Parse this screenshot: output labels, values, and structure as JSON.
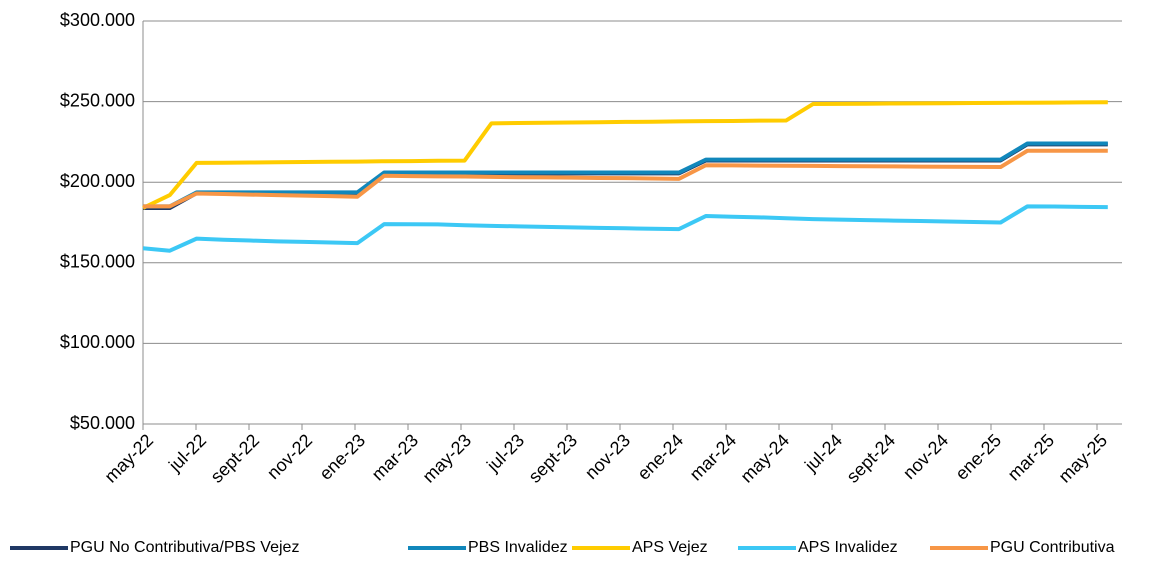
{
  "chart_data": {
    "type": "line",
    "categories": [
      "may-22",
      null,
      "jul-22",
      null,
      "sept-22",
      null,
      "nov-22",
      null,
      "ene-23",
      null,
      "mar-23",
      null,
      "may-23",
      null,
      "jul-23",
      null,
      "sept-23",
      null,
      "nov-23",
      null,
      "ene-24",
      null,
      "mar-24",
      null,
      "may-24",
      null,
      "jul-24",
      null,
      "sept-24",
      null,
      "nov-24",
      null,
      "ene-25",
      null,
      "mar-25",
      null,
      "may-25"
    ],
    "series": [
      {
        "name": "PGU No Contributiva/PBS Vejez",
        "color": "#1f3864",
        "values": [
          184000,
          184000,
          193200,
          193200,
          193200,
          193200,
          193200,
          193200,
          193200,
          205500,
          205500,
          205500,
          205500,
          205500,
          205500,
          205500,
          205500,
          205500,
          205500,
          205500,
          205500,
          213500,
          213500,
          213500,
          213500,
          213500,
          213500,
          213500,
          213500,
          213500,
          213500,
          213500,
          213500,
          223500,
          223500,
          223500,
          223500
        ]
      },
      {
        "name": "PBS Invalidez",
        "color": "#1187bb",
        "values": [
          185000,
          185000,
          193700,
          193700,
          193700,
          193700,
          193700,
          193700,
          193700,
          206000,
          206000,
          206000,
          206000,
          206000,
          206000,
          206000,
          206000,
          206000,
          206000,
          206000,
          206000,
          214000,
          214000,
          214000,
          214000,
          214000,
          214000,
          214000,
          214000,
          214000,
          214000,
          214000,
          214000,
          224000,
          224000,
          224000,
          224000
        ]
      },
      {
        "name": "APS Vejez",
        "color": "#ffcc00",
        "values": [
          184000,
          192000,
          212000,
          212100,
          212200,
          212400,
          212500,
          212700,
          212800,
          213000,
          213100,
          213300,
          213400,
          236500,
          236700,
          236900,
          237000,
          237200,
          237400,
          237500,
          237700,
          237900,
          238000,
          238200,
          238300,
          248500,
          248600,
          248700,
          248800,
          248900,
          249000,
          249100,
          249200,
          249300,
          249400,
          249500,
          249600
        ]
      },
      {
        "name": "APS Invalidez",
        "color": "#3cc8f5",
        "values": [
          159000,
          157500,
          165000,
          164300,
          163800,
          163300,
          163000,
          162600,
          162200,
          174000,
          173900,
          173800,
          173300,
          172900,
          172600,
          172300,
          172000,
          171700,
          171400,
          171100,
          170900,
          179000,
          178600,
          178200,
          177600,
          177100,
          176800,
          176500,
          176200,
          175900,
          175600,
          175300,
          175000,
          185000,
          184900,
          184700,
          184500
        ]
      },
      {
        "name": "PGU Contributiva",
        "color": "#f79646",
        "values": [
          185000,
          185000,
          193000,
          192700,
          192300,
          192000,
          191700,
          191400,
          191000,
          204000,
          203800,
          203600,
          203500,
          203300,
          203100,
          203000,
          202800,
          202600,
          202500,
          202300,
          202100,
          210500,
          210400,
          210300,
          210200,
          210100,
          210000,
          209900,
          209800,
          209700,
          209600,
          209500,
          209400,
          219500,
          219500,
          219500,
          219500
        ]
      }
    ],
    "ylim": [
      50000,
      300000
    ],
    "yticks": [
      {
        "value": 50000,
        "label": "$50.000"
      },
      {
        "value": 100000,
        "label": "$100.000"
      },
      {
        "value": 150000,
        "label": "$150.000"
      },
      {
        "value": 200000,
        "label": "$200.000"
      },
      {
        "value": 250000,
        "label": "$250.000"
      },
      {
        "value": 300000,
        "label": "$300.000"
      }
    ],
    "grid": true,
    "legend": "bottom"
  }
}
